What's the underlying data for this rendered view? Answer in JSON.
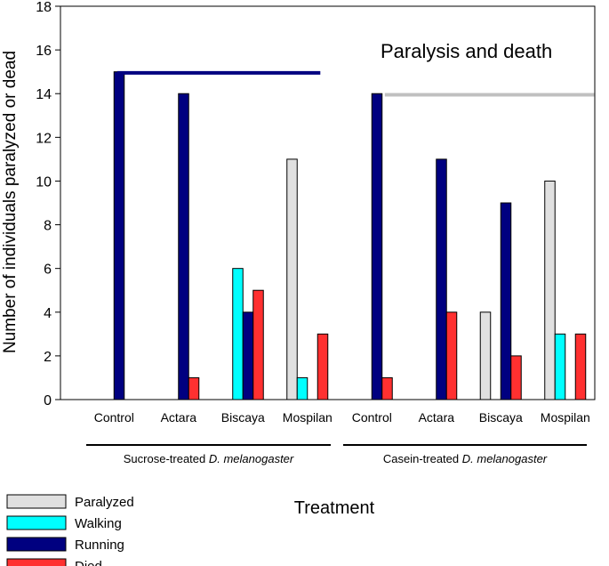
{
  "chart_data": {
    "type": "bar",
    "title": "Paralysis and death",
    "xlabel": "Treatment",
    "ylabel": "Number of individuals paralyzed or dead",
    "ylim": [
      0,
      18
    ],
    "yticks": [
      0,
      2,
      4,
      6,
      8,
      10,
      12,
      14,
      16,
      18
    ],
    "categories": [
      "Control",
      "Actara",
      "Biscaya",
      "Mospilan",
      "Control",
      "Actara",
      "Biscaya",
      "Mospilan"
    ],
    "groups": [
      {
        "prefix": "Sucrose-treated ",
        "species": "D. melanogaster",
        "span": [
          0,
          3
        ]
      },
      {
        "prefix": "Casein-treated ",
        "species": "D. melanogaster",
        "span": [
          4,
          7
        ]
      }
    ],
    "series": [
      {
        "name": "Paralyzed",
        "color": "#e0e0e0",
        "values": [
          0,
          0,
          0,
          11,
          0,
          0,
          4,
          10
        ]
      },
      {
        "name": "Walking",
        "color": "#00ffff",
        "values": [
          0,
          0,
          6,
          1,
          0,
          0,
          0,
          3
        ]
      },
      {
        "name": "Running",
        "color": "#000080",
        "values": [
          15,
          14,
          4,
          0,
          14,
          11,
          9,
          0
        ]
      },
      {
        "name": "Died",
        "color": "#ff3030",
        "values": [
          0,
          1,
          5,
          3,
          1,
          4,
          2,
          3
        ]
      }
    ],
    "reference_lines": [
      {
        "color": "#000080",
        "y": 14.95,
        "from": 0.55,
        "to": 3.7
      },
      {
        "color": "#c0c0c0",
        "y": 13.95,
        "from": 4.7,
        "to": 7.95
      }
    ],
    "legend_position": "bottom-left",
    "grid": false
  }
}
